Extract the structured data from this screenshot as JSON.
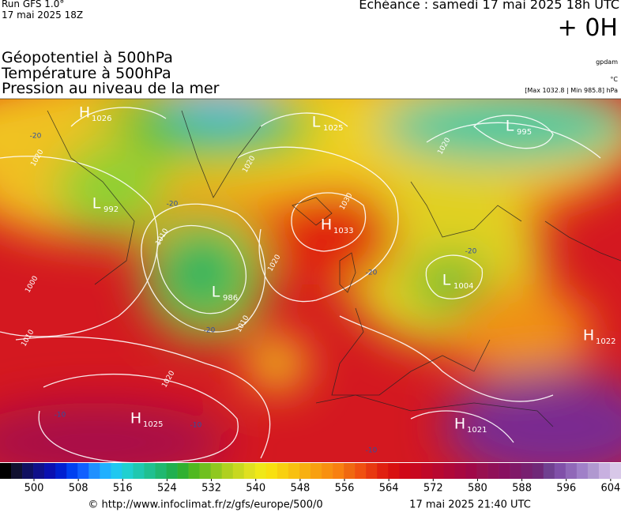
{
  "header": {
    "run": "Run GFS 1.0°",
    "run_date": "17 mai 2025 18Z",
    "echeance": "Echéance : samedi 17 mai 2025 18h UTC",
    "lead": "+ 0H"
  },
  "titles": [
    "Géopotentiel à 500hPa",
    "Température à 500hPa",
    "Pression au niveau de la mer"
  ],
  "units": [
    "gpdam",
    "°C",
    "[Max 1032.8 | Min 985.8] hPa"
  ],
  "centers": [
    {
      "letter": "H",
      "value": "1026"
    },
    {
      "letter": "L",
      "value": "1025"
    },
    {
      "letter": "L",
      "value": "995"
    },
    {
      "letter": "L",
      "value": "992"
    },
    {
      "letter": "H",
      "value": "1033"
    },
    {
      "letter": "L",
      "value": "986"
    },
    {
      "letter": "L",
      "value": "1004"
    },
    {
      "letter": "H",
      "value": "1022"
    },
    {
      "letter": "H",
      "value": "1025"
    },
    {
      "letter": "H",
      "value": "1021"
    }
  ],
  "isobar_labels": [
    "1020",
    "1020",
    "1010",
    "1000",
    "1010",
    "1020",
    "1020",
    "1030",
    "1020",
    "1010"
  ],
  "temperature_labels": [
    "-20",
    "-20",
    "-20",
    "-20",
    "-20",
    "-10",
    "-10",
    "-10"
  ],
  "colorbar": [
    500,
    508,
    516,
    524,
    532,
    540,
    548,
    556,
    564,
    572,
    580,
    588,
    596,
    604
  ],
  "footer": {
    "url": "© http://www.infoclimat.fr/z/gfs/europe/500/0",
    "timestamp": "17 mai 2025 21:40 UTC"
  }
}
